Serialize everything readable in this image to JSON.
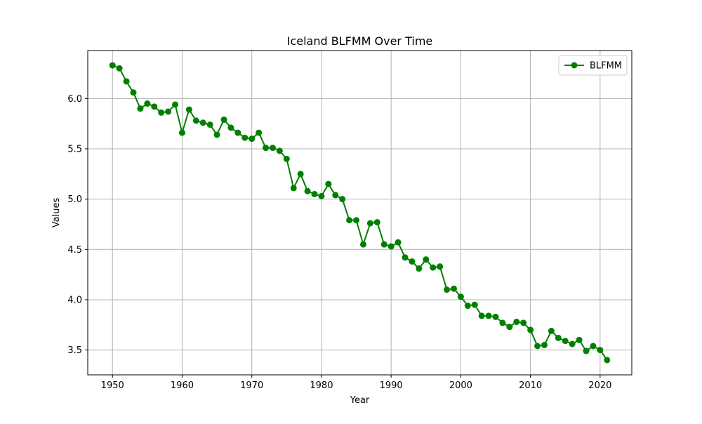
{
  "chart_data": {
    "type": "line",
    "title": "Iceland BLFMM Over Time",
    "xlabel": "Year",
    "ylabel": "Values",
    "xlim": [
      1946.45,
      2024.55
    ],
    "ylim": [
      3.253,
      6.477
    ],
    "xticks": [
      1950,
      1960,
      1970,
      1980,
      1990,
      2000,
      2010,
      2020
    ],
    "xtick_labels": [
      "1950",
      "1960",
      "1970",
      "1980",
      "1990",
      "2000",
      "2010",
      "2020"
    ],
    "yticks": [
      3.5,
      4.0,
      4.5,
      5.0,
      5.5,
      6.0
    ],
    "ytick_labels": [
      "3.5",
      "4.0",
      "4.5",
      "5.0",
      "5.5",
      "6.0"
    ],
    "grid": true,
    "legend_position": "top-right",
    "series": [
      {
        "name": "BLFMM",
        "color": "#008000",
        "marker": "circle",
        "x": [
          1950,
          1951,
          1952,
          1953,
          1954,
          1955,
          1956,
          1957,
          1958,
          1959,
          1960,
          1961,
          1962,
          1963,
          1964,
          1965,
          1966,
          1967,
          1968,
          1969,
          1970,
          1971,
          1972,
          1973,
          1974,
          1975,
          1976,
          1977,
          1978,
          1979,
          1980,
          1981,
          1982,
          1983,
          1984,
          1985,
          1986,
          1987,
          1988,
          1989,
          1990,
          1991,
          1992,
          1993,
          1994,
          1995,
          1996,
          1997,
          1998,
          1999,
          2000,
          2001,
          2002,
          2003,
          2004,
          2005,
          2006,
          2007,
          2008,
          2009,
          2010,
          2011,
          2012,
          2013,
          2014,
          2015,
          2016,
          2017,
          2018,
          2019,
          2020,
          2021
        ],
        "values": [
          6.33,
          6.3,
          6.17,
          6.06,
          5.9,
          5.95,
          5.92,
          5.86,
          5.87,
          5.94,
          5.66,
          5.89,
          5.78,
          5.76,
          5.74,
          5.64,
          5.79,
          5.71,
          5.66,
          5.61,
          5.6,
          5.66,
          5.51,
          5.51,
          5.48,
          5.4,
          5.11,
          5.25,
          5.08,
          5.05,
          5.03,
          5.15,
          5.04,
          5.0,
          4.79,
          4.79,
          4.55,
          4.76,
          4.77,
          4.55,
          4.53,
          4.57,
          4.42,
          4.38,
          4.31,
          4.4,
          4.32,
          4.33,
          4.1,
          4.11,
          4.03,
          3.94,
          3.95,
          3.84,
          3.84,
          3.83,
          3.77,
          3.73,
          3.78,
          3.77,
          3.7,
          3.54,
          3.55,
          3.69,
          3.62,
          3.59,
          3.56,
          3.6,
          3.49,
          3.54,
          3.5,
          3.4
        ]
      }
    ]
  }
}
